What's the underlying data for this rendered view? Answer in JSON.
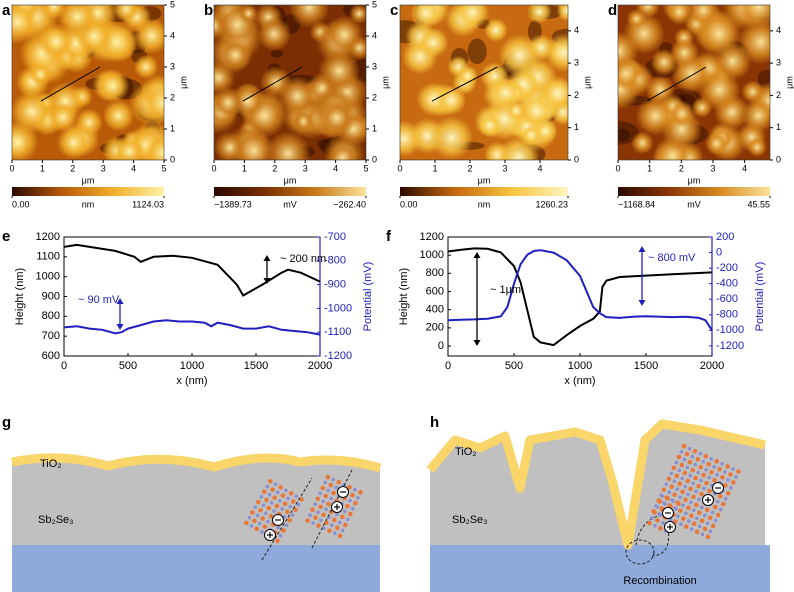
{
  "chart_data": [
    {
      "type": "image",
      "label": "a",
      "xlabel": "μm",
      "ylabel": "μm",
      "xlim": [
        0,
        5
      ],
      "ylim": [
        0,
        5
      ],
      "xticks": [
        0,
        1,
        2,
        3,
        4,
        5
      ],
      "yticks": [
        0,
        1,
        2,
        3,
        4,
        5
      ],
      "colorbar": {
        "unit": "nm",
        "ticks": [
          {
            "value": 0,
            "label": "0.00"
          },
          1124.03
        ],
        "colors": [
          "#2b0a00",
          "#b85a08",
          "#f2b02a",
          "#fff2a8"
        ]
      }
    },
    {
      "type": "image",
      "label": "b",
      "xlabel": "μm",
      "ylabel": "μm",
      "xlim": [
        0,
        5
      ],
      "ylim": [
        0,
        5
      ],
      "xticks": [
        0,
        1,
        2,
        3,
        4,
        5
      ],
      "yticks": [
        0,
        1,
        2,
        3,
        4,
        5
      ],
      "colorbar": {
        "unit": "mV",
        "ticks": [
          {
            "value": -1389.73,
            "label": "−1389.73"
          },
          {
            "value": -262.4,
            "label": "−262.40"
          }
        ],
        "colors": [
          "#2b0a00",
          "#7a2e02",
          "#c97a1a",
          "#fbe39a"
        ]
      }
    },
    {
      "type": "image",
      "label": "c",
      "xlabel": "μm",
      "ylabel": "μm",
      "xlim": [
        0,
        4.8
      ],
      "ylim": [
        0,
        4.8
      ],
      "xticks": [
        0,
        1,
        2,
        3,
        4
      ],
      "yticks": [
        0,
        1,
        2,
        3,
        4
      ],
      "colorbar": {
        "unit": "nm",
        "ticks": [
          {
            "value": 0,
            "label": "0.00"
          },
          1260.23
        ],
        "colors": [
          "#2b0a00",
          "#c86a10",
          "#f6c440",
          "#fff6c0"
        ]
      }
    },
    {
      "type": "image",
      "label": "d",
      "xlabel": "μm",
      "ylabel": "μm",
      "xlim": [
        0,
        4.8
      ],
      "ylim": [
        0,
        4.8
      ],
      "xticks": [
        0,
        1,
        2,
        3,
        4
      ],
      "yticks": [
        0,
        1,
        2,
        3,
        4
      ],
      "colorbar": {
        "unit": "mV",
        "ticks": [
          {
            "value": -1168.84,
            "label": "−1168.84"
          },
          45.55
        ],
        "colors": [
          "#2b0a00",
          "#8a3604",
          "#d88a20",
          "#fbe39a"
        ]
      }
    },
    {
      "type": "line",
      "label": "e",
      "xlabel": "x (nm)",
      "ylabel": "Height (nm)",
      "y2label": "Potential (mV)",
      "xlim": [
        0,
        2000
      ],
      "xticks": [
        0,
        500,
        1000,
        1500,
        2000
      ],
      "ylim": [
        600,
        1200
      ],
      "yticks": [
        600,
        700,
        800,
        900,
        1000,
        1100,
        1200
      ],
      "y2lim": [
        -1200,
        -700
      ],
      "y2ticks": [
        -1200,
        -1100,
        -1000,
        -900,
        -800,
        -700
      ],
      "series": [
        {
          "color": "#000000",
          "x": [
            0,
            100,
            200,
            400,
            550,
            600,
            700,
            850,
            1000,
            1200,
            1350,
            1400,
            1550,
            1700,
            1750,
            1850,
            2000
          ],
          "values": [
            1150,
            1160,
            1150,
            1130,
            1100,
            1075,
            1100,
            1105,
            1095,
            1060,
            960,
            905,
            960,
            1020,
            1035,
            1020,
            975
          ]
        },
        {
          "color": "#1f1fbf",
          "axis": "y2",
          "x": [
            0,
            100,
            200,
            300,
            400,
            450,
            500,
            600,
            700,
            800,
            900,
            1000,
            1100,
            1150,
            1200,
            1300,
            1400,
            1500,
            1600,
            1700,
            1800,
            1900,
            2000
          ],
          "values": [
            -1080,
            -1075,
            -1085,
            -1090,
            -1105,
            -1100,
            -1085,
            -1070,
            -1055,
            -1050,
            -1055,
            -1055,
            -1060,
            -1075,
            -1060,
            -1070,
            -1085,
            -1085,
            -1075,
            -1090,
            -1095,
            -1100,
            -1110
          ]
        }
      ],
      "annotations": [
        {
          "text": "~ 200 nm",
          "color": "#000000"
        },
        {
          "text": "~ 90 mV",
          "color": "#1f1fbf"
        }
      ]
    },
    {
      "type": "line",
      "label": "f",
      "xlabel": "x (nm)",
      "ylabel": "Height (nm)",
      "y2label": "Potential (mV)",
      "xlim": [
        0,
        2000
      ],
      "xticks": [
        0,
        500,
        1000,
        1500,
        2000
      ],
      "ylim": [
        -110,
        1200
      ],
      "yticks": [
        0,
        200,
        400,
        600,
        800,
        1000,
        1200
      ],
      "y2lim": [
        -1330,
        200
      ],
      "y2ticks": [
        -1200,
        -1000,
        -800,
        -600,
        -400,
        -200,
        0,
        200
      ],
      "series": [
        {
          "color": "#000000",
          "x": [
            0,
            100,
            200,
            300,
            400,
            500,
            550,
            600,
            650,
            700,
            800,
            900,
            1000,
            1100,
            1150,
            1170,
            1200,
            1300,
            1500,
            1700,
            2000
          ],
          "values": [
            1040,
            1060,
            1075,
            1070,
            1030,
            880,
            700,
            400,
            100,
            40,
            10,
            120,
            220,
            300,
            380,
            650,
            720,
            760,
            775,
            790,
            810
          ]
        },
        {
          "color": "#1f1fbf",
          "axis": "y2",
          "x": [
            0,
            100,
            200,
            300,
            400,
            450,
            500,
            550,
            600,
            650,
            700,
            800,
            900,
            1000,
            1050,
            1100,
            1150,
            1200,
            1300,
            1400,
            1500,
            1700,
            1800,
            1900,
            1950,
            2000
          ],
          "values": [
            -870,
            -865,
            -860,
            -850,
            -820,
            -700,
            -400,
            -150,
            -30,
            20,
            30,
            0,
            -100,
            -300,
            -500,
            -700,
            -780,
            -830,
            -840,
            -825,
            -820,
            -830,
            -825,
            -840,
            -870,
            -1000
          ]
        }
      ],
      "annotations": [
        {
          "text": "~ 1μm",
          "color": "#000000"
        },
        {
          "text": "~ 800 mV",
          "color": "#1f1fbf"
        }
      ]
    }
  ],
  "diagrams": [
    {
      "label": "g",
      "layers": [
        "TiO₂",
        "Sb₂Se₃"
      ]
    },
    {
      "label": "h",
      "layers": [
        "TiO₂",
        "Sb₂Se₃"
      ],
      "caption": "Recombination"
    }
  ]
}
